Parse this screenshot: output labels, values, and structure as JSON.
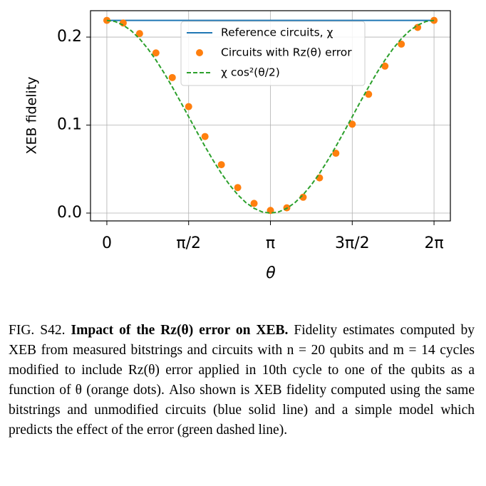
{
  "chart_data": {
    "type": "line",
    "ylabel": "XEB fidelity",
    "xlabel": "θ",
    "xlim": [
      -0.314,
      6.597
    ],
    "ylim": [
      -0.0089,
      0.23
    ],
    "xticks": [
      {
        "value": 0,
        "label": "0"
      },
      {
        "value": 1.5708,
        "label": "π/2"
      },
      {
        "value": 3.1416,
        "label": "π"
      },
      {
        "value": 4.7124,
        "label": "3π/2"
      },
      {
        "value": 6.2832,
        "label": "2π"
      }
    ],
    "yticks": [
      {
        "value": 0,
        "label": "0.0"
      },
      0.1,
      0.2
    ],
    "grid": true,
    "legend": "upper center",
    "series": [
      {
        "name": "Reference circuits, χ",
        "color": "#1f77b4",
        "style": "solid",
        "x": [
          0,
          6.2832
        ],
        "values": [
          0.219,
          0.219
        ]
      },
      {
        "name": "Circuits with Rz(θ) error",
        "color": "#ff7f0e",
        "style": "markers",
        "x": [
          0,
          0.3142,
          0.6283,
          0.9425,
          1.2566,
          1.5708,
          1.885,
          2.1991,
          2.5133,
          2.8274,
          3.1416,
          3.4558,
          3.7699,
          4.0841,
          4.3982,
          4.7124,
          5.0265,
          5.3407,
          5.6549,
          5.969,
          6.2832
        ],
        "values": [
          0.219,
          0.216,
          0.204,
          0.182,
          0.154,
          0.121,
          0.087,
          0.055,
          0.029,
          0.011,
          0.003,
          0.006,
          0.018,
          0.04,
          0.068,
          0.101,
          0.135,
          0.167,
          0.192,
          0.211,
          0.219
        ]
      },
      {
        "name": "χ cos²(θ/2)",
        "color": "#2ca02c",
        "style": "dashed",
        "x": [
          0,
          0.1571,
          0.3142,
          0.4712,
          0.6283,
          0.7854,
          0.9425,
          1.0996,
          1.2566,
          1.4137,
          1.5708,
          1.7279,
          1.885,
          2.042,
          2.1991,
          2.3562,
          2.5133,
          2.6704,
          2.8274,
          2.9845,
          3.1416,
          3.2987,
          3.4558,
          3.6128,
          3.7699,
          3.927,
          4.0841,
          4.2412,
          4.3982,
          4.5553,
          4.7124,
          4.8695,
          5.0265,
          5.1836,
          5.3407,
          5.4978,
          5.6549,
          5.8119,
          5.969,
          6.1261,
          6.2832
        ],
        "values": [
          0.219,
          0.2177,
          0.2136,
          0.2071,
          0.1981,
          0.1869,
          0.1739,
          0.1592,
          0.1433,
          0.1266,
          0.1095,
          0.0924,
          0.0757,
          0.0598,
          0.0451,
          0.0321,
          0.0209,
          0.0119,
          0.0054,
          0.0013,
          0,
          0.0013,
          0.0054,
          0.0119,
          0.0209,
          0.0321,
          0.0451,
          0.0598,
          0.0757,
          0.0924,
          0.1095,
          0.1266,
          0.1433,
          0.1592,
          0.1739,
          0.1869,
          0.1981,
          0.2071,
          0.2136,
          0.2177,
          0.219
        ]
      }
    ]
  },
  "caption": {
    "label": "FIG. S42.",
    "title": "Impact of the Rz(θ) error on XEB.",
    "text": "Fidelity estimates computed by XEB from measured bitstrings and circuits with n = 20 qubits and m = 14 cycles modified to include Rz(θ) error applied in 10th cycle to one of the qubits as a function of θ (orange dots). Also shown is XEB fidelity computed using the same bitstrings and unmodified circuits (blue solid line) and a simple model which predicts the effect of the error (green dashed line)."
  }
}
